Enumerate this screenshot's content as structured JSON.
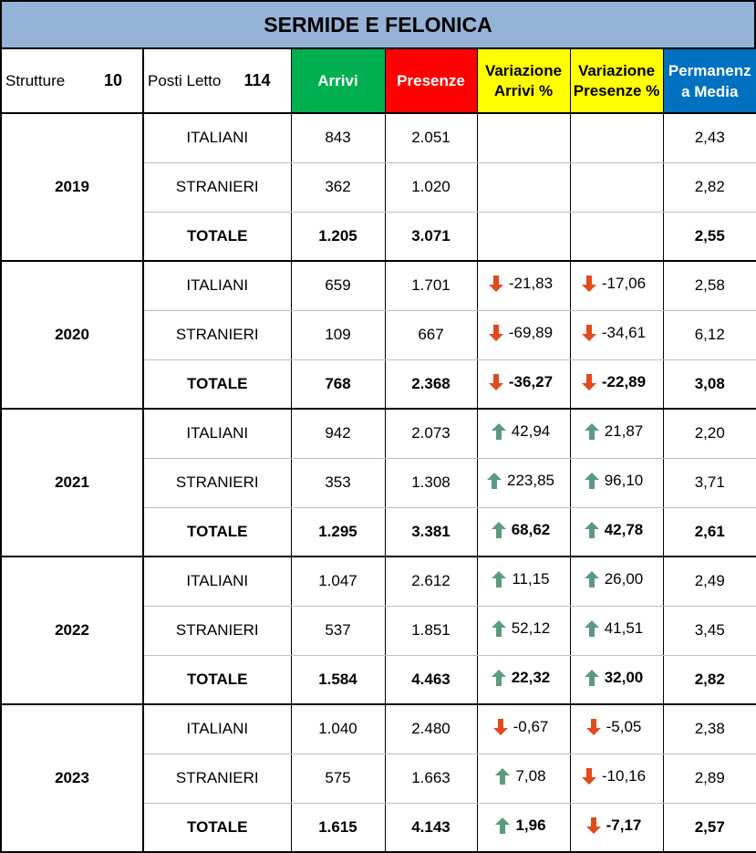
{
  "title": "SERMIDE E FELONICA",
  "header": {
    "strutture_label": "Strutture",
    "strutture_value": "10",
    "posti_label": "Posti Letto",
    "posti_value": "114",
    "arrivi": "Arrivi",
    "presenze": "Presenze",
    "var_arrivi_1": "Variazione",
    "var_arrivi_2": "Arrivi %",
    "var_presenze_1": "Variazione",
    "var_presenze_2": "Presenze %",
    "perm_1": "Permanenz",
    "perm_2": "a Media"
  },
  "colors": {
    "title_bg": "#95b3d7",
    "arrivi_bg": "#00b050",
    "presenze_bg": "#ff0000",
    "variazione_bg": "#ffff00",
    "permanenza_bg": "#0070c0",
    "arrow_down": "#e04a1c",
    "arrow_up": "#5b9b7d"
  },
  "years": [
    {
      "year": "2019",
      "rows": [
        {
          "label": "ITALIANI",
          "arrivi": "843",
          "presenze": "2.051",
          "var_arrivi": "",
          "var_arrivi_dir": "",
          "var_presenze": "",
          "var_presenze_dir": "",
          "permanenza": "2,43"
        },
        {
          "label": "STRANIERI",
          "arrivi": "362",
          "presenze": "1.020",
          "var_arrivi": "",
          "var_arrivi_dir": "",
          "var_presenze": "",
          "var_presenze_dir": "",
          "permanenza": "2,82"
        },
        {
          "label": "TOTALE",
          "arrivi": "1.205",
          "presenze": "3.071",
          "var_arrivi": "",
          "var_arrivi_dir": "",
          "var_presenze": "",
          "var_presenze_dir": "",
          "permanenza": "2,55"
        }
      ]
    },
    {
      "year": "2020",
      "rows": [
        {
          "label": "ITALIANI",
          "arrivi": "659",
          "presenze": "1.701",
          "var_arrivi": "-21,83",
          "var_arrivi_dir": "down",
          "var_presenze": "-17,06",
          "var_presenze_dir": "down",
          "permanenza": "2,58"
        },
        {
          "label": "STRANIERI",
          "arrivi": "109",
          "presenze": "667",
          "var_arrivi": "-69,89",
          "var_arrivi_dir": "down",
          "var_presenze": "-34,61",
          "var_presenze_dir": "down",
          "permanenza": "6,12"
        },
        {
          "label": "TOTALE",
          "arrivi": "768",
          "presenze": "2.368",
          "var_arrivi": "-36,27",
          "var_arrivi_dir": "down",
          "var_presenze": "-22,89",
          "var_presenze_dir": "down",
          "permanenza": "3,08"
        }
      ]
    },
    {
      "year": "2021",
      "rows": [
        {
          "label": "ITALIANI",
          "arrivi": "942",
          "presenze": "2.073",
          "var_arrivi": "42,94",
          "var_arrivi_dir": "up",
          "var_presenze": "21,87",
          "var_presenze_dir": "up",
          "permanenza": "2,20"
        },
        {
          "label": "STRANIERI",
          "arrivi": "353",
          "presenze": "1.308",
          "var_arrivi": "223,85",
          "var_arrivi_dir": "up",
          "var_presenze": "96,10",
          "var_presenze_dir": "up",
          "permanenza": "3,71"
        },
        {
          "label": "TOTALE",
          "arrivi": "1.295",
          "presenze": "3.381",
          "var_arrivi": "68,62",
          "var_arrivi_dir": "up",
          "var_presenze": "42,78",
          "var_presenze_dir": "up",
          "permanenza": "2,61"
        }
      ]
    },
    {
      "year": "2022",
      "rows": [
        {
          "label": "ITALIANI",
          "arrivi": "1.047",
          "presenze": "2.612",
          "var_arrivi": "11,15",
          "var_arrivi_dir": "up",
          "var_presenze": "26,00",
          "var_presenze_dir": "up",
          "permanenza": "2,49"
        },
        {
          "label": "STRANIERI",
          "arrivi": "537",
          "presenze": "1.851",
          "var_arrivi": "52,12",
          "var_arrivi_dir": "up",
          "var_presenze": "41,51",
          "var_presenze_dir": "up",
          "permanenza": "3,45"
        },
        {
          "label": "TOTALE",
          "arrivi": "1.584",
          "presenze": "4.463",
          "var_arrivi": "22,32",
          "var_arrivi_dir": "up",
          "var_presenze": "32,00",
          "var_presenze_dir": "up",
          "permanenza": "2,82"
        }
      ]
    },
    {
      "year": "2023",
      "rows": [
        {
          "label": "ITALIANI",
          "arrivi": "1.040",
          "presenze": "2.480",
          "var_arrivi": "-0,67",
          "var_arrivi_dir": "down",
          "var_presenze": "-5,05",
          "var_presenze_dir": "down",
          "permanenza": "2,38"
        },
        {
          "label": "STRANIERI",
          "arrivi": "575",
          "presenze": "1.663",
          "var_arrivi": "7,08",
          "var_arrivi_dir": "up",
          "var_presenze": "-10,16",
          "var_presenze_dir": "down",
          "permanenza": "2,89"
        },
        {
          "label": "TOTALE",
          "arrivi": "1.615",
          "presenze": "4.143",
          "var_arrivi": "1,96",
          "var_arrivi_dir": "up",
          "var_presenze": "-7,17",
          "var_presenze_dir": "down",
          "permanenza": "2,57"
        }
      ]
    }
  ]
}
